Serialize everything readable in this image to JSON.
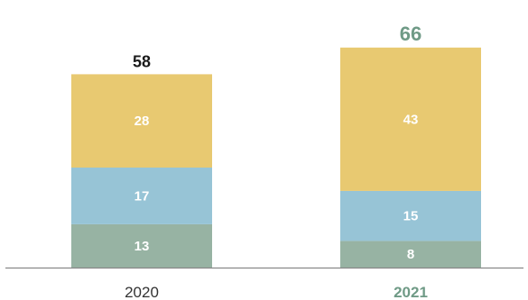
{
  "chart_data": {
    "type": "bar",
    "stacked": true,
    "categories": [
      "2020",
      "2021"
    ],
    "series": [
      {
        "values": [
          13,
          8
        ],
        "color": "#97b3a3"
      },
      {
        "values": [
          17,
          15
        ],
        "color": "#97c4d6"
      },
      {
        "values": [
          28,
          43
        ],
        "color": "#e8c971"
      }
    ],
    "totals": [
      "58",
      "66"
    ],
    "highlight_category": "2021",
    "colors": {
      "normal_text": "#1a1a1a",
      "highlight_text": "#6f9a86",
      "axis": "#888888"
    },
    "title": "",
    "xlabel": "",
    "ylabel": "",
    "ylim": [
      0,
      66
    ],
    "grid": false,
    "legend": "none"
  }
}
